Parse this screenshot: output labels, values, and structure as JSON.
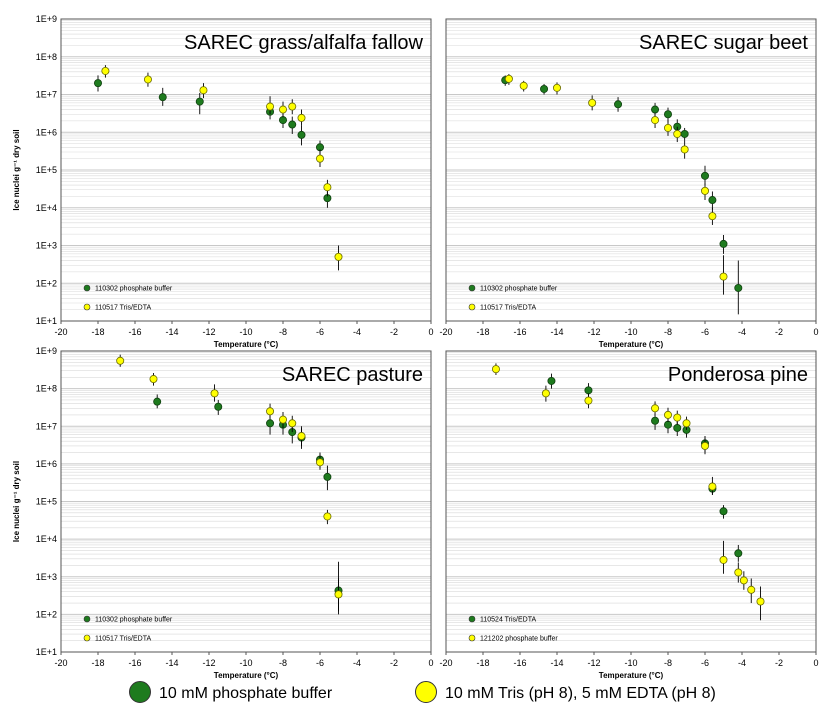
{
  "colors": {
    "phosphate": "#1e7b1e",
    "tris": "#ffff00",
    "marker_edge": "#6b6b00",
    "grid": "#d9d9d9",
    "error_bar": "#000000"
  },
  "figure_legend": {
    "items": [
      {
        "label": "10 mM phosphate buffer",
        "color_key": "phosphate"
      },
      {
        "label": "10 mM Tris (pH 8), 5 mM EDTA (pH 8)",
        "color_key": "tris"
      }
    ]
  },
  "chart_data": [
    {
      "type": "scatter",
      "title": "SAREC grass/alfalfa fallow",
      "xlabel": "Temperature (°C)",
      "ylabel": "Ice nuclei  g⁻¹ dry soil",
      "xlim": [
        -20,
        0
      ],
      "ylim": [
        10,
        1000000000
      ],
      "yscale": "log",
      "x_ticks": [
        "-20",
        "-18",
        "-16",
        "-14",
        "-12",
        "-10",
        "-8",
        "-6",
        "-4",
        "-2",
        "0"
      ],
      "y_ticks": [
        "1E+1",
        "1E+2",
        "1E+3",
        "1E+4",
        "1E+5",
        "1E+6",
        "1E+7",
        "1E+8",
        "1E+9"
      ],
      "grid": true,
      "legend_position": "bottom-left",
      "series": [
        {
          "name": "110302 phosphate buffer",
          "color_key": "phosphate",
          "points": [
            {
              "x": -18.0,
              "y": 20000000,
              "lo": 12000000,
              "hi": 32000000
            },
            {
              "x": -14.5,
              "y": 8500000,
              "lo": 5000000,
              "hi": 15000000
            },
            {
              "x": -12.5,
              "y": 6500000,
              "lo": 3000000,
              "hi": 11000000
            },
            {
              "x": -8.7,
              "y": 3500000,
              "lo": 2200000,
              "hi": 5500000
            },
            {
              "x": -8.0,
              "y": 2100000,
              "lo": 1300000,
              "hi": 3500000
            },
            {
              "x": -7.5,
              "y": 1600000,
              "lo": 900000,
              "hi": 2600000
            },
            {
              "x": -7.0,
              "y": 850000,
              "lo": 450000,
              "hi": 1500000
            },
            {
              "x": -6.0,
              "y": 400000,
              "lo": 250000,
              "hi": 600000
            },
            {
              "x": -5.6,
              "y": 18000,
              "lo": 10000,
              "hi": 30000
            }
          ]
        },
        {
          "name": "110517 Tris/EDTA",
          "color_key": "tris",
          "points": [
            {
              "x": -17.6,
              "y": 42000000,
              "lo": 28000000,
              "hi": 60000000
            },
            {
              "x": -15.3,
              "y": 25000000,
              "lo": 16000000,
              "hi": 38000000
            },
            {
              "x": -12.3,
              "y": 13000000,
              "lo": 8000000,
              "hi": 20000000
            },
            {
              "x": -8.7,
              "y": 4800000,
              "lo": 3000000,
              "hi": 9000000
            },
            {
              "x": -8.0,
              "y": 4000000,
              "lo": 2500000,
              "hi": 6500000
            },
            {
              "x": -7.5,
              "y": 4800000,
              "lo": 3000000,
              "hi": 7500000
            },
            {
              "x": -7.0,
              "y": 2400000,
              "lo": 1500000,
              "hi": 4000000
            },
            {
              "x": -6.0,
              "y": 200000,
              "lo": 120000,
              "hi": 350000
            },
            {
              "x": -5.6,
              "y": 35000,
              "lo": 20000,
              "hi": 55000
            },
            {
              "x": -5.0,
              "y": 500,
              "lo": 220,
              "hi": 1000
            }
          ]
        }
      ]
    },
    {
      "type": "scatter",
      "title": "SAREC sugar beet",
      "xlabel": "Temperature (°C)",
      "ylabel": "",
      "xlim": [
        -20,
        0
      ],
      "ylim": [
        10,
        1000000000
      ],
      "yscale": "log",
      "x_ticks": [
        "-20",
        "-18",
        "-16",
        "-14",
        "-12",
        "-10",
        "-8",
        "-6",
        "-4",
        "-2",
        "0"
      ],
      "y_ticks": [],
      "grid": true,
      "legend_position": "bottom-left",
      "series": [
        {
          "name": "110302 phosphate buffer",
          "color_key": "phosphate",
          "points": [
            {
              "x": -16.8,
              "y": 24000000,
              "lo": 17000000,
              "hi": 32000000
            },
            {
              "x": -14.7,
              "y": 14000000,
              "lo": 10000000,
              "hi": 19000000
            },
            {
              "x": -10.7,
              "y": 5500000,
              "lo": 3500000,
              "hi": 8500000
            },
            {
              "x": -8.7,
              "y": 4000000,
              "lo": 2500000,
              "hi": 6000000
            },
            {
              "x": -8.0,
              "y": 3000000,
              "lo": 1800000,
              "hi": 4500000
            },
            {
              "x": -7.5,
              "y": 1400000,
              "lo": 900000,
              "hi": 2200000
            },
            {
              "x": -7.1,
              "y": 900000,
              "lo": 600000,
              "hi": 1300000
            },
            {
              "x": -6.0,
              "y": 70000,
              "lo": 40000,
              "hi": 130000
            },
            {
              "x": -5.6,
              "y": 16000,
              "lo": 9000,
              "hi": 27000
            },
            {
              "x": -5.0,
              "y": 1100,
              "lo": 600,
              "hi": 1900
            },
            {
              "x": -4.2,
              "y": 75,
              "lo": 15,
              "hi": 400
            }
          ]
        },
        {
          "name": "110517 Tris/EDTA",
          "color_key": "tris",
          "points": [
            {
              "x": -16.6,
              "y": 26000000,
              "lo": 18000000,
              "hi": 35000000
            },
            {
              "x": -15.8,
              "y": 17000000,
              "lo": 12000000,
              "hi": 23000000
            },
            {
              "x": -14.0,
              "y": 15000000,
              "lo": 10000000,
              "hi": 21000000
            },
            {
              "x": -12.1,
              "y": 6000000,
              "lo": 3800000,
              "hi": 9500000
            },
            {
              "x": -8.7,
              "y": 2100000,
              "lo": 1300000,
              "hi": 3300000
            },
            {
              "x": -8.0,
              "y": 1300000,
              "lo": 800000,
              "hi": 2100000
            },
            {
              "x": -7.5,
              "y": 900000,
              "lo": 550000,
              "hi": 1400000
            },
            {
              "x": -7.1,
              "y": 350000,
              "lo": 200000,
              "hi": 600000
            },
            {
              "x": -6.0,
              "y": 28000,
              "lo": 16000,
              "hi": 45000
            },
            {
              "x": -5.6,
              "y": 6000,
              "lo": 3500,
              "hi": 10000
            },
            {
              "x": -5.0,
              "y": 150,
              "lo": 50,
              "hi": 550
            }
          ]
        }
      ]
    },
    {
      "type": "scatter",
      "title": "SAREC pasture",
      "xlabel": "Temperature (°C)",
      "ylabel": "Ice nuclei  g⁻¹ dry soil",
      "xlim": [
        -20,
        0
      ],
      "ylim": [
        10,
        1000000000
      ],
      "yscale": "log",
      "x_ticks": [
        "-20",
        "-18",
        "-16",
        "-14",
        "-12",
        "-10",
        "-8",
        "-6",
        "-4",
        "-2",
        "0"
      ],
      "y_ticks": [
        "1E+1",
        "1E+2",
        "1E+3",
        "1E+4",
        "1E+5",
        "1E+6",
        "1E+7",
        "1E+8",
        "1E+9"
      ],
      "grid": true,
      "legend_position": "bottom-left",
      "series": [
        {
          "name": "110302 phosphate buffer",
          "color_key": "phosphate",
          "points": [
            {
              "x": -14.8,
              "y": 45000000,
              "lo": 30000000,
              "hi": 70000000
            },
            {
              "x": -11.5,
              "y": 33000000,
              "lo": 20000000,
              "hi": 50000000
            },
            {
              "x": -8.7,
              "y": 12000000,
              "lo": 6000000,
              "hi": 22000000
            },
            {
              "x": -8.0,
              "y": 11000000,
              "lo": 6000000,
              "hi": 18000000
            },
            {
              "x": -7.5,
              "y": 7000000,
              "lo": 3500000,
              "hi": 12000000
            },
            {
              "x": -7.0,
              "y": 5000000,
              "lo": 2500000,
              "hi": 9000000
            },
            {
              "x": -6.0,
              "y": 1300000,
              "lo": 800000,
              "hi": 2000000
            },
            {
              "x": -5.6,
              "y": 450000,
              "lo": 200000,
              "hi": 900000
            },
            {
              "x": -5.0,
              "y": 430,
              "lo": 120,
              "hi": 2500
            }
          ]
        },
        {
          "name": "110517 Tris/EDTA",
          "color_key": "tris",
          "points": [
            {
              "x": -16.8,
              "y": 550000000,
              "lo": 380000000,
              "hi": 800000000
            },
            {
              "x": -15.0,
              "y": 180000000,
              "lo": 120000000,
              "hi": 260000000
            },
            {
              "x": -11.7,
              "y": 75000000,
              "lo": 45000000,
              "hi": 130000000
            },
            {
              "x": -8.7,
              "y": 25000000,
              "lo": 16000000,
              "hi": 40000000
            },
            {
              "x": -8.0,
              "y": 15000000,
              "lo": 9000000,
              "hi": 24000000
            },
            {
              "x": -7.5,
              "y": 12000000,
              "lo": 7000000,
              "hi": 19000000
            },
            {
              "x": -7.0,
              "y": 5500000,
              "lo": 3000000,
              "hi": 10000000
            },
            {
              "x": -6.0,
              "y": 1100000,
              "lo": 700000,
              "hi": 1800000
            },
            {
              "x": -5.6,
              "y": 40000,
              "lo": 25000,
              "hi": 60000
            },
            {
              "x": -5.0,
              "y": 340,
              "lo": 100,
              "hi": 900
            }
          ]
        }
      ]
    },
    {
      "type": "scatter",
      "title": "Ponderosa pine",
      "xlabel": "Temperature (°C)",
      "ylabel": "",
      "xlim": [
        -20,
        0
      ],
      "ylim": [
        10,
        1000000000
      ],
      "yscale": "log",
      "x_ticks": [
        "-20",
        "-18",
        "-16",
        "-14",
        "-12",
        "-10",
        "-8",
        "-6",
        "-4",
        "-2",
        "0"
      ],
      "y_ticks": [],
      "grid": true,
      "legend_position": "bottom-left",
      "series": [
        {
          "name": "110524 Tris/EDTA",
          "color_key": "phosphate",
          "points": [
            {
              "x": -14.3,
              "y": 160000000,
              "lo": 100000000,
              "hi": 250000000
            },
            {
              "x": -12.3,
              "y": 90000000,
              "lo": 55000000,
              "hi": 140000000
            },
            {
              "x": -8.7,
              "y": 14000000,
              "lo": 8000000,
              "hi": 22000000
            },
            {
              "x": -8.0,
              "y": 11000000,
              "lo": 6500000,
              "hi": 17000000
            },
            {
              "x": -7.5,
              "y": 9000000,
              "lo": 5500000,
              "hi": 14000000
            },
            {
              "x": -7.0,
              "y": 8000000,
              "lo": 5000000,
              "hi": 12000000
            },
            {
              "x": -6.0,
              "y": 3500000,
              "lo": 2000000,
              "hi": 5500000
            },
            {
              "x": -5.6,
              "y": 220000,
              "lo": 150000,
              "hi": 330000
            },
            {
              "x": -5.0,
              "y": 55000,
              "lo": 35000,
              "hi": 80000
            },
            {
              "x": -4.2,
              "y": 4200,
              "lo": 2500,
              "hi": 7000
            }
          ]
        },
        {
          "name": "121202 phosphate buffer",
          "color_key": "tris",
          "points": [
            {
              "x": -17.3,
              "y": 330000000,
              "lo": 230000000,
              "hi": 470000000
            },
            {
              "x": -14.6,
              "y": 75000000,
              "lo": 45000000,
              "hi": 120000000
            },
            {
              "x": -12.3,
              "y": 48000000,
              "lo": 30000000,
              "hi": 75000000
            },
            {
              "x": -8.7,
              "y": 30000000,
              "lo": 19000000,
              "hi": 46000000
            },
            {
              "x": -8.0,
              "y": 20000000,
              "lo": 13000000,
              "hi": 31000000
            },
            {
              "x": -7.5,
              "y": 17000000,
              "lo": 11000000,
              "hi": 26000000
            },
            {
              "x": -7.0,
              "y": 12000000,
              "lo": 8000000,
              "hi": 18000000
            },
            {
              "x": -6.0,
              "y": 3000000,
              "lo": 1800000,
              "hi": 5000000
            },
            {
              "x": -5.6,
              "y": 250000,
              "lo": 150000,
              "hi": 450000
            },
            {
              "x": -5.0,
              "y": 2800,
              "lo": 1200,
              "hi": 9000
            },
            {
              "x": -4.2,
              "y": 1300,
              "lo": 700,
              "hi": 2400
            },
            {
              "x": -3.9,
              "y": 800,
              "lo": 450,
              "hi": 1400
            },
            {
              "x": -3.5,
              "y": 450,
              "lo": 200,
              "hi": 900
            },
            {
              "x": -3.0,
              "y": 220,
              "lo": 70,
              "hi": 550
            }
          ]
        }
      ]
    }
  ]
}
